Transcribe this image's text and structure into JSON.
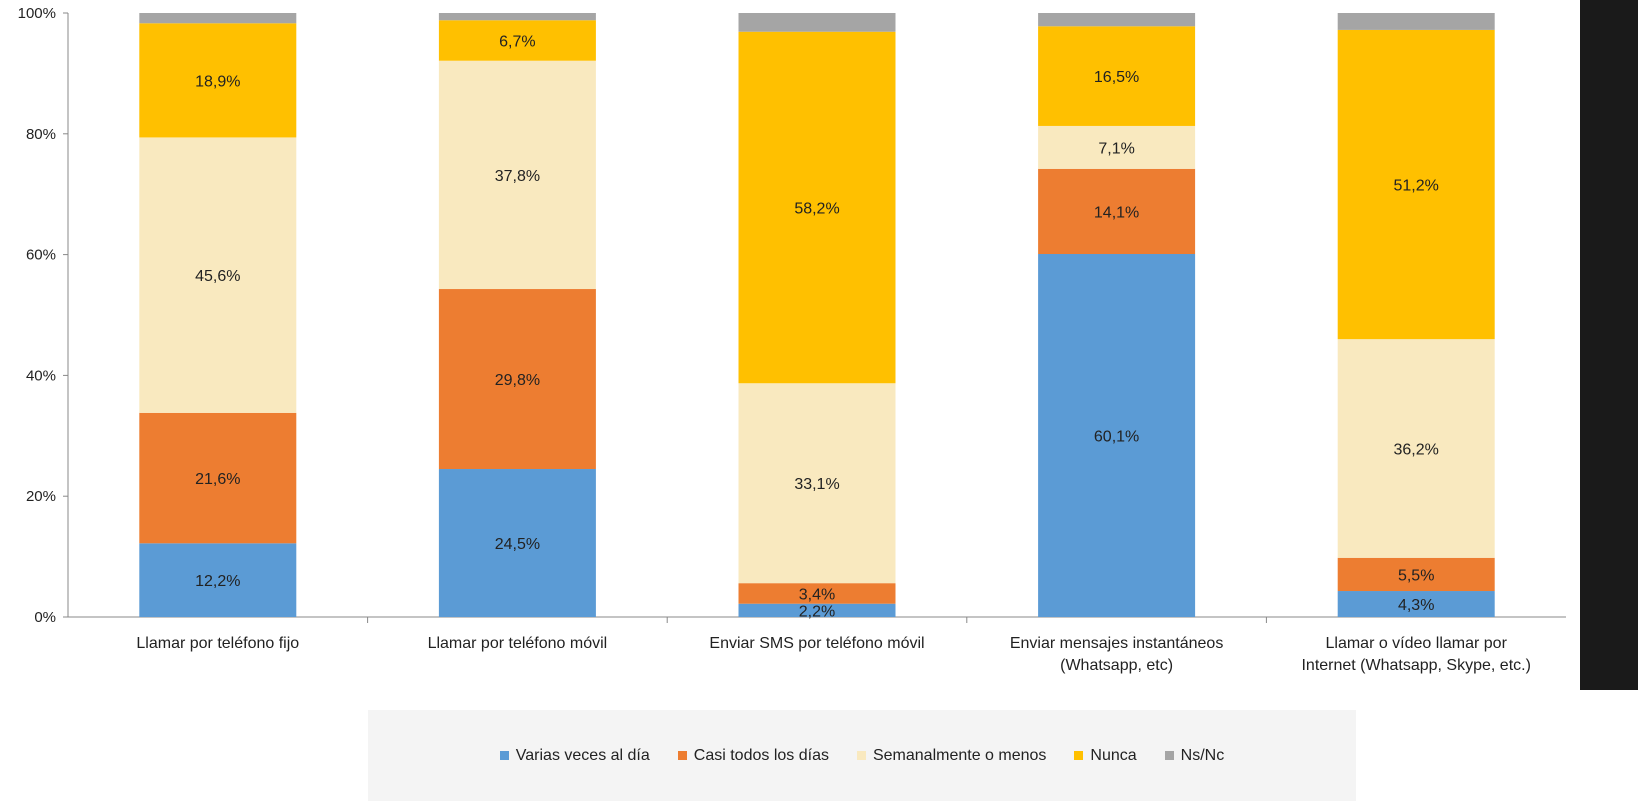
{
  "chart_data": {
    "type": "bar",
    "stacked": true,
    "categories": [
      [
        "Llamar por teléfono fijo"
      ],
      [
        "Llamar por teléfono móvil"
      ],
      [
        "Enviar SMS por teléfono móvil"
      ],
      [
        "Enviar mensajes instantáneos",
        "(Whatsapp, etc)"
      ],
      [
        "Llamar o vídeo llamar por",
        "Internet (Whatsapp, Skype, etc.)"
      ]
    ],
    "series": [
      {
        "name": "Varias veces al día",
        "color": "#5b9bd5",
        "values": [
          12.2,
          24.5,
          2.2,
          60.1,
          4.3
        ],
        "labels": [
          "12,2%",
          "24,5%",
          "2,2%",
          "60,1%",
          "4,3%"
        ]
      },
      {
        "name": "Casi todos los días",
        "color": "#ed7d31",
        "values": [
          21.6,
          29.8,
          3.4,
          14.1,
          5.5
        ],
        "labels": [
          "21,6%",
          "29,8%",
          "3,4%",
          "14,1%",
          "5,5%"
        ]
      },
      {
        "name": "Semanalmente o menos",
        "color": "#f9e9bf",
        "values": [
          45.6,
          37.8,
          33.1,
          7.1,
          36.2
        ],
        "labels": [
          "45,6%",
          "37,8%",
          "33,1%",
          "7,1%",
          "36,2%"
        ]
      },
      {
        "name": "Nunca",
        "color": "#ffc000",
        "values": [
          18.9,
          6.7,
          58.2,
          16.5,
          51.2
        ],
        "labels": [
          "18,9%",
          "6,7%",
          "58,2%",
          "16,5%",
          "51,2%"
        ]
      },
      {
        "name": "Ns/Nc",
        "color": "#a5a5a5",
        "values": [
          1.7,
          1.2,
          3.1,
          2.2,
          2.8
        ],
        "labels": [
          "",
          "",
          "",
          "",
          ""
        ]
      }
    ],
    "yticks": [
      "0%",
      "20%",
      "40%",
      "60%",
      "80%",
      "100%"
    ],
    "ylim": [
      0,
      100
    ],
    "grid": false,
    "legend_position": "bottom"
  }
}
